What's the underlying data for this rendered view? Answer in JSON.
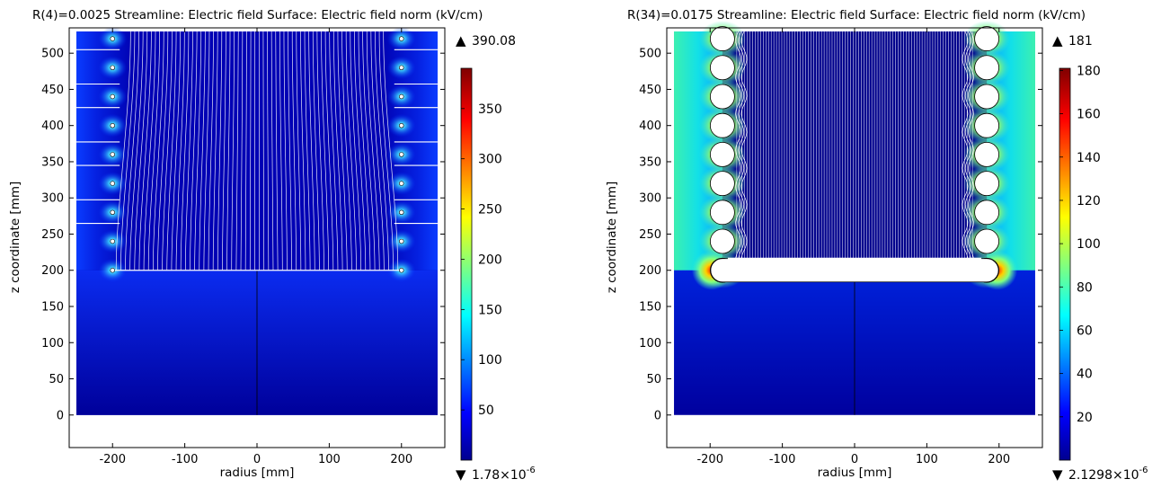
{
  "chart_data": [
    {
      "type": "heatmap",
      "title": "R(4)=0.0025   Streamline: Electric field  Surface: Electric field norm (kV/cm)",
      "xlabel": "radius [mm]",
      "ylabel": "z coordinate [mm]",
      "xlim": [
        -260,
        260
      ],
      "ylim": [
        -45,
        535
      ],
      "domain": {
        "r": [
          -250,
          250
        ],
        "z": [
          0,
          530
        ]
      },
      "x_ticks": [
        "-200",
        "-100",
        "0",
        "100",
        "200"
      ],
      "y_ticks": [
        "0",
        "50",
        "100",
        "150",
        "200",
        "250",
        "300",
        "350",
        "400",
        "450",
        "500"
      ],
      "x_tick_values": [
        -200,
        -100,
        0,
        100,
        200
      ],
      "y_tick_values": [
        0,
        50,
        100,
        150,
        200,
        250,
        300,
        350,
        400,
        450,
        500
      ],
      "ring_radius_mm": 200,
      "ring_z": [
        200,
        240,
        280,
        320,
        360,
        400,
        440,
        480,
        520
      ],
      "conductor_size": "small",
      "colorbar": {
        "label": "Electric field norm (kV/cm)",
        "max_label": "390.08",
        "min_label": "1.78×10",
        "min_exp": "-6",
        "range": [
          0,
          390.08
        ],
        "ticks": [
          "50",
          "100",
          "150",
          "200",
          "250",
          "300",
          "350"
        ],
        "tick_values": [
          50,
          100,
          150,
          200,
          250,
          300,
          350
        ]
      }
    },
    {
      "type": "heatmap",
      "title": "R(34)=0.0175   Streamline: Electric field  Surface: Electric field norm (kV/cm)",
      "xlabel": "radius [mm]",
      "ylabel": "z coordinate [mm]",
      "xlim": [
        -260,
        260
      ],
      "ylim": [
        -45,
        535
      ],
      "domain": {
        "r": [
          -250,
          250
        ],
        "z": [
          0,
          530
        ]
      },
      "x_ticks": [
        "-200",
        "-100",
        "0",
        "100",
        "200"
      ],
      "y_ticks": [
        "0",
        "50",
        "100",
        "150",
        "200",
        "250",
        "300",
        "350",
        "400",
        "450",
        "500"
      ],
      "x_tick_values": [
        -200,
        -100,
        0,
        100,
        200
      ],
      "y_tick_values": [
        0,
        50,
        100,
        150,
        200,
        250,
        300,
        350,
        400,
        450,
        500
      ],
      "ring_radius_mm": 183,
      "ring_z": [
        200,
        240,
        280,
        320,
        360,
        400,
        440,
        480,
        520
      ],
      "conductor_size": "large",
      "colorbar": {
        "label": "Electric field norm (kV/cm)",
        "max_label": "181",
        "min_label": "2.1298×10",
        "min_exp": "-6",
        "range": [
          0,
          181
        ],
        "ticks": [
          "20",
          "40",
          "60",
          "80",
          "100",
          "120",
          "140",
          "160",
          "180"
        ],
        "tick_values": [
          20,
          40,
          60,
          80,
          100,
          120,
          140,
          160,
          180
        ]
      }
    }
  ],
  "colors": {
    "jet": [
      "#00008f",
      "#0000ff",
      "#00ffff",
      "#ffff00",
      "#ff0000",
      "#800000"
    ],
    "field_dark": "#0000a8",
    "streamline": "#ffffff",
    "axis": "#000000"
  }
}
